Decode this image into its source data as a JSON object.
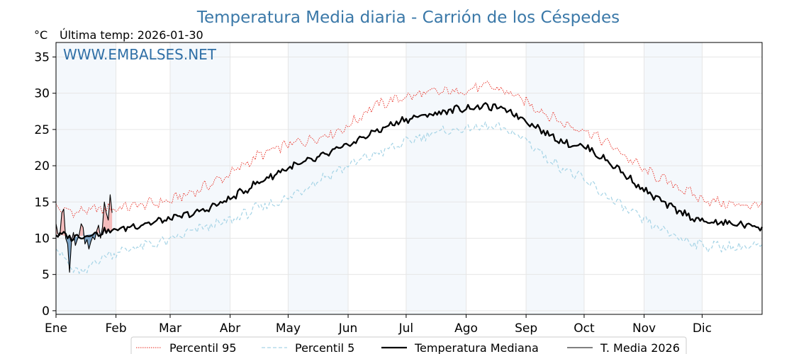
{
  "chart_data": {
    "type": "line",
    "title": "Temperatura Media diaria - Carrión de los Céspedes",
    "unit_label": "°C",
    "last_temp_text": "Última temp: 2026-01-30",
    "watermark": "WWW.EMBALSES.NET",
    "xlabel": "",
    "ylabel": "",
    "x_range_days": [
      1,
      366
    ],
    "ylim": [
      -0.5,
      37
    ],
    "y_ticks": [
      0,
      5,
      10,
      15,
      20,
      25,
      30,
      35
    ],
    "month_labels": [
      "Ene",
      "Feb",
      "Mar",
      "Abr",
      "May",
      "Jun",
      "Jul",
      "Ago",
      "Sep",
      "Oct",
      "Nov",
      "Dic"
    ],
    "month_start_days": [
      1,
      32,
      60,
      91,
      121,
      152,
      182,
      213,
      244,
      274,
      305,
      335
    ],
    "shaded_month_indices": [
      0,
      2,
      4,
      6,
      8,
      10
    ],
    "grid": true,
    "legend_position": "bottom-center",
    "series": [
      {
        "name": "Percentil 95",
        "style": "dotted",
        "color": "#e8281e",
        "x": [
          1,
          10,
          20,
          31,
          45,
          59,
          75,
          90,
          105,
          120,
          135,
          150,
          165,
          180,
          195,
          210,
          225,
          235,
          245,
          255,
          265,
          275,
          290,
          305,
          320,
          335,
          350,
          366
        ],
        "y": [
          14.2,
          13.6,
          13.9,
          14.1,
          14.6,
          15.1,
          16.7,
          18.7,
          21.3,
          22.8,
          23.8,
          25.1,
          28.2,
          29.4,
          30.1,
          30.3,
          31.0,
          30.1,
          28.6,
          27.1,
          25.6,
          24.9,
          22.4,
          19.4,
          17.4,
          15.4,
          14.6,
          14.6
        ]
      },
      {
        "name": "Percentil 5",
        "style": "dashed",
        "color": "#a6d4e6",
        "x": [
          1,
          8,
          15,
          22,
          31,
          45,
          59,
          75,
          90,
          105,
          120,
          135,
          150,
          165,
          180,
          195,
          210,
          225,
          235,
          245,
          255,
          265,
          275,
          290,
          305,
          320,
          335,
          350,
          366
        ],
        "y": [
          9.0,
          6.0,
          5.0,
          7.0,
          8.0,
          8.9,
          9.6,
          11.3,
          12.3,
          14.1,
          15.4,
          17.8,
          19.8,
          21.5,
          23.0,
          24.5,
          25.0,
          25.4,
          24.8,
          23.4,
          21.0,
          19.4,
          17.8,
          15.0,
          12.4,
          10.4,
          9.0,
          8.8,
          8.8
        ]
      },
      {
        "name": "Temperatura Mediana",
        "style": "solid-thick",
        "color": "#000000",
        "x": [
          1,
          10,
          20,
          31,
          45,
          59,
          75,
          90,
          105,
          120,
          135,
          150,
          165,
          180,
          195,
          210,
          225,
          235,
          245,
          255,
          265,
          275,
          290,
          305,
          320,
          335,
          350,
          366
        ],
        "y": [
          10.6,
          10.1,
          10.6,
          11.1,
          11.9,
          12.6,
          13.6,
          15.3,
          17.6,
          19.6,
          20.9,
          22.6,
          24.6,
          26.3,
          27.1,
          27.9,
          28.2,
          27.6,
          26.1,
          24.4,
          23.1,
          22.6,
          19.9,
          16.6,
          14.1,
          12.3,
          12.0,
          11.6
        ]
      },
      {
        "name": "T. Media 2026",
        "style": "solid-thin",
        "color": "#000000",
        "x": [
          1,
          2,
          3,
          4,
          5,
          6,
          7,
          8,
          9,
          10,
          11,
          12,
          13,
          14,
          15,
          16,
          17,
          18,
          19,
          20,
          21,
          22,
          23,
          24,
          25,
          26,
          27,
          28,
          29,
          30
        ],
        "y": [
          12.0,
          10.6,
          10.4,
          13.5,
          14.0,
          10.0,
          9.2,
          5.3,
          9.5,
          10.8,
          9.0,
          9.8,
          10.5,
          12.0,
          11.5,
          9.2,
          9.8,
          8.5,
          9.5,
          10.2,
          9.8,
          11.0,
          11.8,
          10.0,
          11.5,
          15.0,
          13.5,
          12.5,
          16.0,
          13.5
        ]
      }
    ]
  },
  "colors": {
    "above_p95_fill": "#f4b3b3",
    "below_p5_fill": "#6b98c0",
    "month_shade": "#f4f8fc",
    "grid": "#e6e6e6"
  }
}
